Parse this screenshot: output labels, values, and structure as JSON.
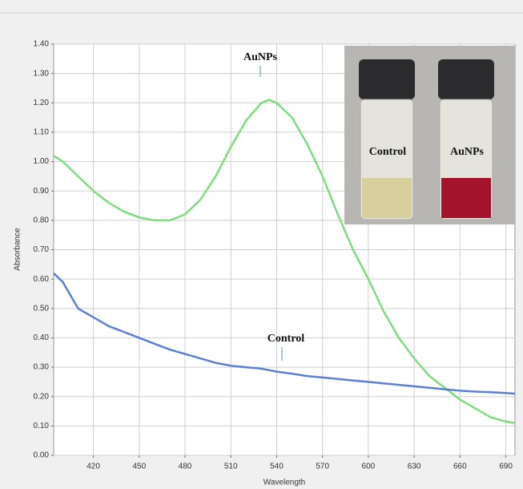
{
  "chart_data": {
    "type": "line",
    "x_label": "Wavelength",
    "y_label": "Absorbance",
    "x": [
      394,
      400,
      410,
      420,
      430,
      440,
      450,
      460,
      470,
      480,
      490,
      500,
      510,
      520,
      530,
      535,
      540,
      550,
      560,
      570,
      580,
      590,
      600,
      610,
      620,
      630,
      640,
      650,
      660,
      670,
      680,
      690,
      696
    ],
    "series": [
      {
        "name": "AuNPs",
        "color": "#7edc7e",
        "values": [
          1.02,
          1.0,
          0.95,
          0.9,
          0.86,
          0.83,
          0.81,
          0.8,
          0.8,
          0.82,
          0.87,
          0.95,
          1.05,
          1.14,
          1.2,
          1.21,
          1.2,
          1.15,
          1.06,
          0.95,
          0.82,
          0.7,
          0.6,
          0.49,
          0.4,
          0.33,
          0.27,
          0.23,
          0.19,
          0.16,
          0.13,
          0.115,
          0.11
        ]
      },
      {
        "name": "Control",
        "color": "#5b7fd6",
        "values": [
          0.62,
          0.59,
          0.5,
          0.47,
          0.44,
          0.42,
          0.4,
          0.38,
          0.36,
          0.345,
          0.33,
          0.315,
          0.305,
          0.3,
          0.295,
          0.29,
          0.285,
          0.278,
          0.27,
          0.265,
          0.26,
          0.255,
          0.25,
          0.245,
          0.24,
          0.235,
          0.23,
          0.225,
          0.22,
          0.217,
          0.215,
          0.212,
          0.21
        ]
      }
    ],
    "xlim": [
      394,
      696
    ],
    "ylim": [
      0,
      1.4
    ],
    "xticks": [
      420,
      450,
      480,
      510,
      540,
      570,
      600,
      630,
      660,
      690
    ],
    "yticks": [
      {
        "value": 0,
        "label": "0.00"
      },
      {
        "value": 0.1,
        "label": "0.10"
      },
      {
        "value": 0.2,
        "label": "0.20"
      },
      {
        "value": 0.3,
        "label": "0.30"
      },
      {
        "value": 0.4,
        "label": "0.40"
      },
      {
        "value": 0.5,
        "label": "0.50"
      },
      {
        "value": 0.6,
        "label": "0.60"
      },
      {
        "value": 0.7,
        "label": "0.70"
      },
      {
        "value": 0.8,
        "label": "0.80"
      },
      {
        "value": 0.9,
        "label": "0.90"
      },
      {
        "value": 1.0,
        "label": "1.00"
      },
      {
        "value": 1.1,
        "label": "1.10"
      },
      {
        "value": 1.2,
        "label": "1.20"
      },
      {
        "value": 1.3,
        "label": "1.30"
      },
      {
        "value": 1.4,
        "label": "1.40"
      }
    ],
    "grid": true,
    "annotations": [
      "AuNPs",
      "Control"
    ],
    "inset_labels": [
      "Control",
      "AuNPs"
    ]
  }
}
